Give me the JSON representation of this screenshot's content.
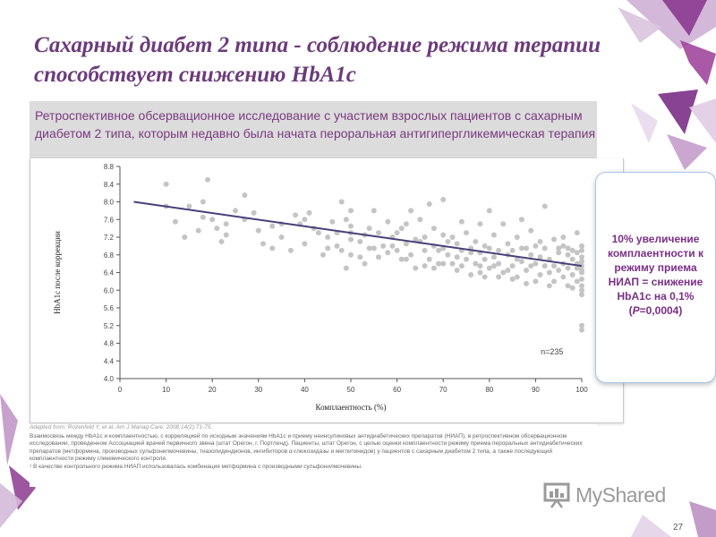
{
  "slide": {
    "title": "Сахарный диабет 2 типа - соблюдение режима терапии способствует снижению HbA1c",
    "subtitle": "Ретроспективное обсервационное исследование с участием взрослых пациентов с сахарным диабетом 2 типа, которым недавно была начата пероральная антигипергликемическая терапия",
    "callout": "10% увеличение комплаентности к режиму приема НИАП = снижение HbA1c на 0,1% (P=0,0004)",
    "footnote_source": "Adapted from: Rozenfeld Y, et al. Am J Manag Care. 2008;14(2):71-75.",
    "footnote_1": "Взаимосвязь между HbA1c и комплаентностью, с корреляцией по исходным значениям HbA1c и приему неинсулиновых антидиабетических препаратов (НИАП), в ретроспективном обсервационном исследовании, проведенном Ассоциацией врачей первичного звена (штат Орегон, г. Портленд). Пациенты, штат Орегон, с целью оценки комплаентности режиму приема пероральных антидиабетических препаратов (метформина, производных сульфонилмочевины, тиазолидиндионов, ингибиторов α-глюкозидазы и меглитинидов) у пациентов с сахарным диабетом 2 типа, а также последующий комплаентности режиму гликемического контроля.",
    "footnote_2": "¹ В качестве контрольного режима НИАП использовалась комбинация метформина с производными сульфонилмочевины.",
    "logo_text": "MyShared",
    "page_number": "27"
  },
  "colors": {
    "title": "#6b3b7a",
    "accent_purple": "#7a2f86",
    "points": "#c4c4c4",
    "trend": "#4a3f7a",
    "callout_border": "#a9c6e8"
  },
  "chart_data": {
    "type": "scatter",
    "title": "",
    "xlabel": "Комплаентность (%)",
    "ylabel": "HbA1c после коррекции",
    "xlim": [
      0,
      100
    ],
    "ylim": [
      4.0,
      8.8
    ],
    "xticks": [
      "0",
      "10",
      "20",
      "30",
      "40",
      "50",
      "60",
      "70",
      "80",
      "90",
      "100"
    ],
    "yticks": [
      "4.0",
      "4.4",
      "4.8",
      "5.2",
      "5.6",
      "6.0",
      "6.4",
      "6.8",
      "7.2",
      "7.6",
      "8.0",
      "8.4",
      "8.8"
    ],
    "annotation": "n=235",
    "trend_line": {
      "x": [
        3,
        100
      ],
      "y": [
        8.0,
        6.55
      ]
    },
    "points": [
      [
        10,
        8.4
      ],
      [
        10,
        7.9
      ],
      [
        18,
        8.0
      ],
      [
        19,
        8.5
      ],
      [
        18,
        7.65
      ],
      [
        20,
        7.6
      ],
      [
        14,
        7.2
      ],
      [
        17,
        7.35
      ],
      [
        22,
        7.1
      ],
      [
        23,
        7.5
      ],
      [
        27,
        7.6
      ],
      [
        27,
        8.15
      ],
      [
        30,
        7.35
      ],
      [
        33,
        7.45
      ],
      [
        35,
        7.5
      ],
      [
        39,
        7.5
      ],
      [
        40,
        7.05
      ],
      [
        40,
        7.6
      ],
      [
        41,
        7.75
      ],
      [
        43,
        7.3
      ],
      [
        45,
        7.2
      ],
      [
        46,
        7.55
      ],
      [
        47,
        7.0
      ],
      [
        48,
        6.9
      ],
      [
        48,
        8.0
      ],
      [
        49,
        6.5
      ],
      [
        49,
        7.6
      ],
      [
        50,
        7.8
      ],
      [
        50,
        7.3
      ],
      [
        50,
        7.15
      ],
      [
        50,
        6.8
      ],
      [
        52,
        7.1
      ],
      [
        53,
        7.25
      ],
      [
        53,
        6.6
      ],
      [
        54,
        7.4
      ],
      [
        55,
        7.8
      ],
      [
        55,
        6.95
      ],
      [
        56,
        7.3
      ],
      [
        57,
        7.0
      ],
      [
        58,
        7.55
      ],
      [
        59,
        7.0
      ],
      [
        60,
        6.9
      ],
      [
        60,
        7.3
      ],
      [
        61,
        7.4
      ],
      [
        62,
        7.05
      ],
      [
        62,
        6.7
      ],
      [
        63,
        7.8
      ],
      [
        63,
        6.8
      ],
      [
        64,
        6.5
      ],
      [
        65,
        7.1
      ],
      [
        65,
        7.6
      ],
      [
        66,
        6.9
      ],
      [
        66,
        7.2
      ],
      [
        67,
        6.7
      ],
      [
        67,
        7.95
      ],
      [
        68,
        6.5
      ],
      [
        68,
        7.4
      ],
      [
        69,
        6.9
      ],
      [
        70,
        7.25
      ],
      [
        70,
        8.05
      ],
      [
        70,
        6.6
      ],
      [
        71,
        6.8
      ],
      [
        72,
        7.2
      ],
      [
        72,
        6.6
      ],
      [
        73,
        7.05
      ],
      [
        73,
        6.45
      ],
      [
        74,
        6.9
      ],
      [
        74,
        7.55
      ],
      [
        75,
        6.7
      ],
      [
        75,
        7.3
      ],
      [
        76,
        6.95
      ],
      [
        77,
        7.1
      ],
      [
        77,
        6.6
      ],
      [
        78,
        6.85
      ],
      [
        78,
        7.5
      ],
      [
        78,
        6.4
      ],
      [
        79,
        6.7
      ],
      [
        79,
        7.0
      ],
      [
        80,
        7.8
      ],
      [
        80,
        6.5
      ],
      [
        80,
        6.95
      ],
      [
        81,
        6.75
      ],
      [
        81,
        7.25
      ],
      [
        82,
        6.6
      ],
      [
        82,
        6.9
      ],
      [
        83,
        7.5
      ],
      [
        83,
        6.4
      ],
      [
        84,
        6.8
      ],
      [
        84,
        7.05
      ],
      [
        85,
        6.55
      ],
      [
        85,
        6.9
      ],
      [
        86,
        7.2
      ],
      [
        86,
        6.3
      ],
      [
        86,
        6.7
      ],
      [
        87,
        7.6
      ],
      [
        87,
        6.65
      ],
      [
        88,
        6.45
      ],
      [
        88,
        6.95
      ],
      [
        89,
        7.35
      ],
      [
        89,
        6.8
      ],
      [
        90,
        6.6
      ],
      [
        90,
        6.2
      ],
      [
        90,
        7.0
      ],
      [
        91,
        6.75
      ],
      [
        91,
        6.35
      ],
      [
        92,
        6.55
      ],
      [
        92,
        6.95
      ],
      [
        92,
        7.9
      ],
      [
        93,
        6.4
      ],
      [
        93,
        6.7
      ],
      [
        94,
        6.2
      ],
      [
        94,
        6.55
      ],
      [
        94,
        7.15
      ],
      [
        95,
        6.45
      ],
      [
        95,
        6.85
      ],
      [
        96,
        6.3
      ],
      [
        96,
        6.6
      ],
      [
        96,
        7.2
      ],
      [
        97,
        6.1
      ],
      [
        97,
        6.5
      ],
      [
        97,
        6.95
      ],
      [
        98,
        6.35
      ],
      [
        98,
        6.7
      ],
      [
        98,
        6.05
      ],
      [
        99,
        6.5
      ],
      [
        99,
        6.85
      ],
      [
        99,
        6.2
      ],
      [
        99,
        7.3
      ],
      [
        99,
        6.6
      ],
      [
        100,
        6.55
      ],
      [
        100,
        6.4
      ],
      [
        100,
        6.25
      ],
      [
        100,
        6.75
      ],
      [
        100,
        6.0
      ],
      [
        100,
        7.0
      ],
      [
        100,
        5.9
      ],
      [
        100,
        6.9
      ],
      [
        100,
        6.1
      ],
      [
        100,
        5.1
      ],
      [
        100,
        5.2
      ],
      [
        100,
        6.45
      ],
      [
        100,
        6.65
      ],
      [
        93,
        6.1
      ],
      [
        88,
        6.15
      ],
      [
        85,
        6.25
      ],
      [
        82,
        6.3
      ],
      [
        78,
        6.55
      ],
      [
        76,
        6.35
      ],
      [
        73,
        6.75
      ],
      [
        70,
        6.95
      ],
      [
        68,
        7.0
      ],
      [
        64,
        7.15
      ],
      [
        62,
        7.5
      ],
      [
        58,
        6.85
      ],
      [
        56,
        6.75
      ],
      [
        50,
        7.45
      ],
      [
        45,
        6.95
      ],
      [
        42,
        7.4
      ],
      [
        38,
        7.7
      ],
      [
        35,
        7.2
      ],
      [
        33,
        6.95
      ],
      [
        29,
        7.75
      ],
      [
        25,
        7.8
      ],
      [
        21,
        7.4
      ],
      [
        15,
        7.9
      ],
      [
        12,
        7.55
      ],
      [
        95,
        6.95
      ],
      [
        96,
        7.0
      ],
      [
        97,
        6.8
      ],
      [
        98,
        6.9
      ],
      [
        91,
        7.1
      ],
      [
        89,
        6.55
      ],
      [
        87,
        6.95
      ],
      [
        84,
        6.45
      ],
      [
        81,
        6.55
      ],
      [
        79,
        6.3
      ],
      [
        76,
        6.85
      ],
      [
        74,
        6.55
      ],
      [
        71,
        7.1
      ],
      [
        69,
        6.6
      ],
      [
        66,
        6.55
      ],
      [
        61,
        6.7
      ],
      [
        59,
        7.2
      ],
      [
        54,
        6.95
      ],
      [
        52,
        6.75
      ],
      [
        47,
        7.3
      ],
      [
        44,
        6.8
      ],
      [
        37,
        6.9
      ],
      [
        31,
        7.05
      ],
      [
        23,
        7.25
      ]
    ]
  }
}
